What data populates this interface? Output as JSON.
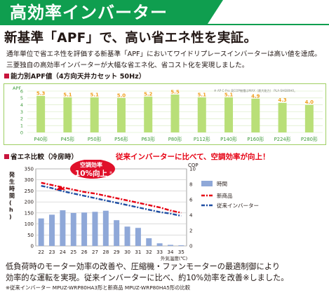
{
  "title": "高効率インバーター",
  "headline": "新基準「APF」で、高い省エネ性を実証。",
  "intro": [
    "通年単位で省エネ性を評価する新基準「APF」においてワイドリプレースインバーターは高い値を達成。",
    "三菱独自の高効率インバーターが大幅な省エネ化、省コスト化を実現しました。"
  ],
  "apf_section": {
    "heading": "能力別APF値（4方向天井カセット 50Hz）",
    "axis_unit": "APF",
    "footnote": "※ AP C-Pro  高COP機種はMAX（最大能力） PLA-SHE80H0。"
  },
  "comparison_section": {
    "heading": "省エネ比較（冷房時）",
    "callout": "従来インバーターに比べて、空調効率が向上！",
    "badge_line1": "空調効率",
    "badge_line2": "10%向上",
    "badge_mark": "※",
    "y_left_label": "発生時間(h)",
    "y_right_label": "COP",
    "x_label": "外気温度(℃)",
    "legend": [
      "時間",
      "新商品",
      "従来インバーター"
    ]
  },
  "bottom_text": [
    "低負荷時のモーター効率の改善や、圧縮機・ファンモーターの最適制御により",
    "効率的な運転を実現。従来インバーターに比べ、約10%効率を改善※しました。"
  ],
  "note": "※従来インバーター MPUZ-WRP80HA3形と新商品 MPUZ-WRP80HA5形の比較",
  "colors": {
    "banner": "#0f9e4f",
    "apf_bar": "#b9df78",
    "apf_value": "#f0a021",
    "accent_red": "#e60012",
    "hours_bar": "#8fa8d8",
    "old_line": "#1f4ea3",
    "badge": "#e0102a"
  },
  "chart_data": [
    {
      "type": "bar",
      "title": "能力別APF値（4方向天井カセット 50Hz）",
      "ylabel": "APF",
      "ylim": [
        0,
        6
      ],
      "yticks": [
        0,
        1,
        2,
        3,
        4,
        5,
        6
      ],
      "categories": [
        "P40形",
        "P45形",
        "P50形",
        "P56形",
        "P63形",
        "P80形",
        "P112形",
        "P140形",
        "P160形",
        "P224形",
        "P280形"
      ],
      "values": [
        5.3,
        5.1,
        5.1,
        5.0,
        5.2,
        5.5,
        5.1,
        5.1,
        4.9,
        4.3,
        4.0
      ],
      "labels": [
        "5.3",
        "5.1",
        "5.1",
        "5.0",
        "5.2",
        "5.5",
        "5.1",
        "5.1",
        "4.9",
        "4.3",
        "4.0"
      ]
    },
    {
      "type": "bar+line",
      "title": "省エネ比較（冷房時）",
      "xlabel": "外気温度(℃)",
      "ylabel_left": "発生時間(h)",
      "ylabel_right": "COP",
      "x": [
        22,
        23,
        24,
        25,
        26,
        27,
        28,
        29,
        30,
        31,
        32,
        33,
        34,
        35
      ],
      "ylim_left": [
        0,
        350
      ],
      "yticks_left": [
        0,
        50,
        100,
        150,
        200,
        250,
        300,
        350
      ],
      "ylim_right": [
        0,
        10
      ],
      "yticks_right": [
        0,
        2,
        4,
        6,
        8,
        10
      ],
      "series": [
        {
          "name": "時間",
          "axis": "left",
          "kind": "bar",
          "values": [
            125,
            142,
            162,
            150,
            152,
            155,
            160,
            117,
            88,
            82,
            35,
            12,
            5,
            3
          ]
        },
        {
          "name": "新商品",
          "axis": "right",
          "kind": "line",
          "values": [
            8.2,
            7.9,
            7.6,
            7.3,
            7.0,
            6.8,
            6.5,
            6.2,
            5.9,
            5.6,
            5.3,
            5.0,
            4.6,
            4.3
          ]
        },
        {
          "name": "従来インバーター",
          "axis": "right",
          "kind": "line",
          "values": [
            7.8,
            7.5,
            7.1,
            6.8,
            6.5,
            6.2,
            5.9,
            5.6,
            5.3,
            5.0,
            4.7,
            4.4,
            4.2,
            3.9
          ]
        }
      ]
    }
  ]
}
